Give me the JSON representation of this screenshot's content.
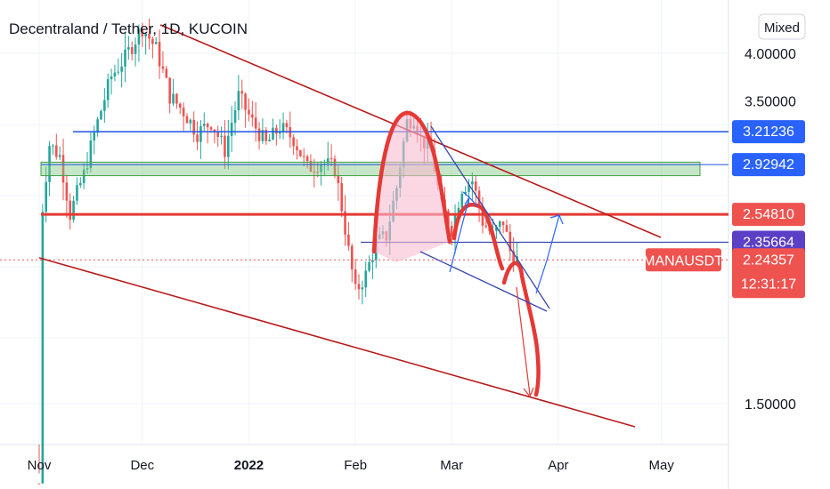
{
  "header": {
    "title": "Decentraland / Tether, 1D, KUCOIN",
    "scale_button": "Mixed"
  },
  "colors": {
    "up": "#26a69a",
    "down": "#ef5350",
    "resistance": "#b71c1c",
    "support_line": "#1e53e5",
    "zone": "#81c784",
    "pattern": "#e53935",
    "pattern_fill": "#f8bbd0",
    "neckline": "#3949ab",
    "grid": "#f0f3fa"
  },
  "chart_data": {
    "type": "candlestick",
    "symbol": "MANAUSDT",
    "interval": "1D",
    "exchange": "KUCOIN",
    "y_ticks": [
      "4.00000",
      "3.50000",
      "1.50000"
    ],
    "x_ticks": [
      {
        "label": "Nov",
        "date": "2021-11-01",
        "bold": false
      },
      {
        "label": "Dec",
        "date": "2021-12-01",
        "bold": false
      },
      {
        "label": "2022",
        "date": "2022-01-01",
        "bold": true
      },
      {
        "label": "Feb",
        "date": "2022-02-01",
        "bold": false
      },
      {
        "label": "Mar",
        "date": "2022-03-01",
        "bold": false
      },
      {
        "label": "Apr",
        "date": "2022-04-01",
        "bold": false
      },
      {
        "label": "May",
        "date": "2022-05-01",
        "bold": false
      }
    ],
    "price_labels": [
      {
        "value": "3.21236",
        "color": "#2962ff"
      },
      {
        "value": "2.92942",
        "color": "#2962ff"
      },
      {
        "value": "2.54810",
        "color": "#ef5350"
      },
      {
        "value": "2.35664",
        "color": "#5b3fc4"
      },
      {
        "value": "2.24357",
        "color": "#ef5350",
        "countdown": "12:31:17",
        "symbol": "MANAUSDT"
      }
    ],
    "horizontal_levels": [
      3.21236,
      2.92942,
      2.5481,
      2.35664
    ],
    "green_zone": [
      2.84,
      2.95
    ],
    "last_price": 2.24357,
    "last_countdown": "12:31:17"
  }
}
